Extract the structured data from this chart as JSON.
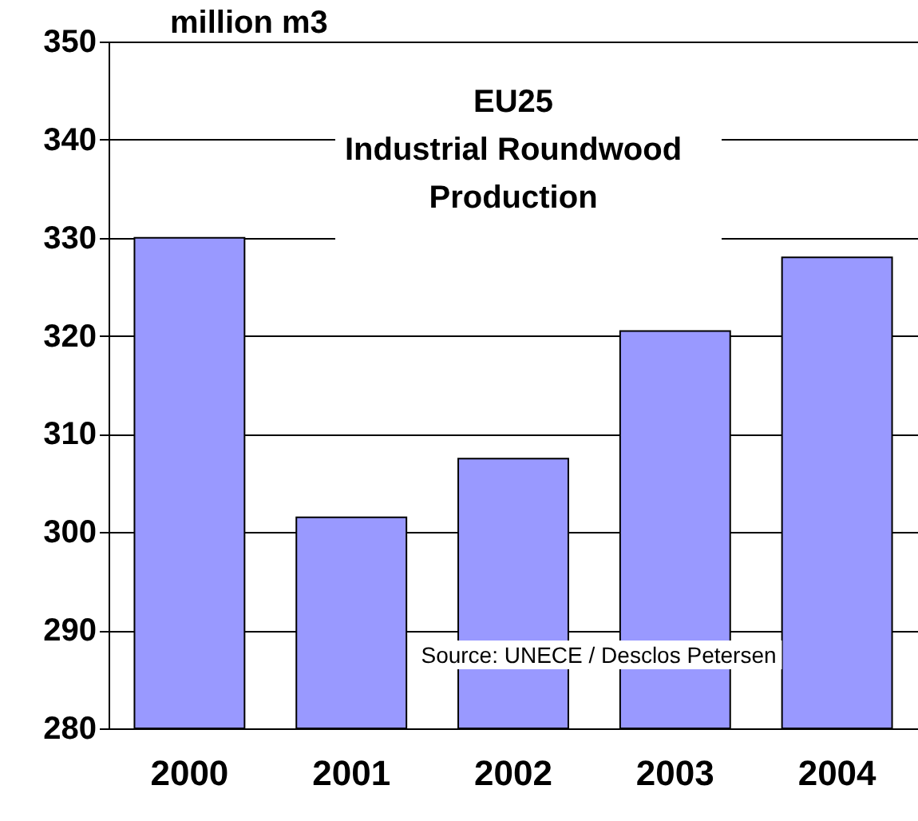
{
  "chart_data": {
    "type": "bar",
    "title": "EU25\nIndustrial Roundwood\nProduction",
    "ylabel": "million m3",
    "categories": [
      "2000",
      "2001",
      "2002",
      "2003",
      "2004"
    ],
    "values": [
      330,
      301.5,
      307.5,
      320.5,
      328
    ],
    "color": "#9999ff",
    "ylim": [
      280,
      350
    ],
    "yticks": [
      280,
      290,
      300,
      310,
      320,
      330,
      340,
      350
    ],
    "grid": "y",
    "annotations": [
      "Source: UNECE / Desclos Petersen"
    ]
  }
}
